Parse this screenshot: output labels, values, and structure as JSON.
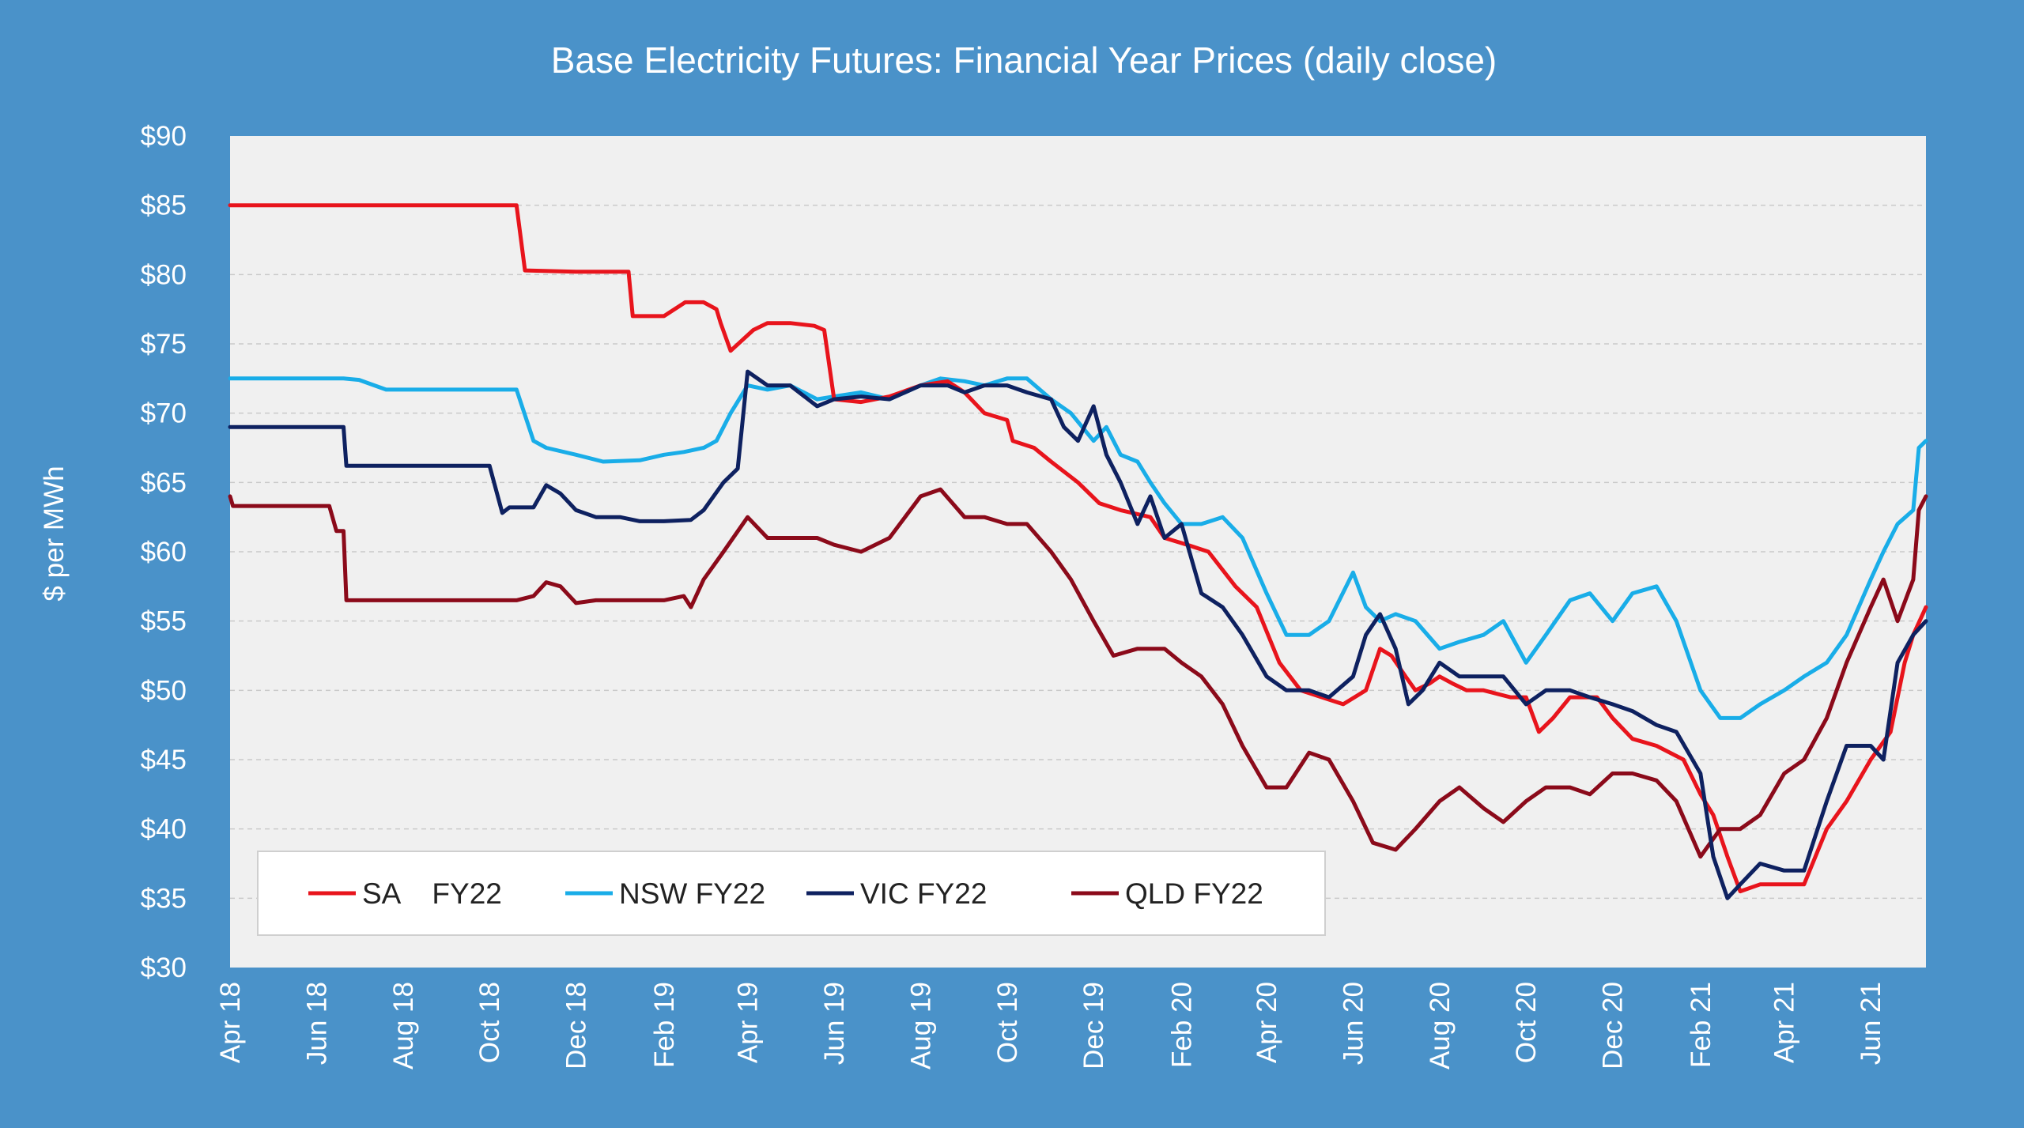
{
  "chart_data": {
    "type": "line",
    "title": "Base Electricity Futures: Financial Year Prices (daily close)",
    "ylabel": "$ per MWh",
    "xlabel": "",
    "ylim": [
      30,
      90
    ],
    "xlim": [
      "2018-04-01",
      "2021-07-10"
    ],
    "y_ticks": [
      "$30",
      "$35",
      "$40",
      "$45",
      "$50",
      "$55",
      "$60",
      "$65",
      "$70",
      "$75",
      "$80",
      "$85",
      "$90"
    ],
    "x_ticks": [
      "Apr 18",
      "Jun 18",
      "Aug 18",
      "Oct 18",
      "Dec 18",
      "Feb 19",
      "Apr 19",
      "Jun 19",
      "Aug 19",
      "Oct 19",
      "Dec 19",
      "Feb 20",
      "Apr 20",
      "Jun 20",
      "Aug 20",
      "Oct 20",
      "Dec 20",
      "Feb 21",
      "Apr 21",
      "Jun 21"
    ],
    "grid": "horizontal dashed",
    "legend_position": "bottom-left",
    "series": [
      {
        "name": "SA    FY22",
        "color": "#e8141c",
        "x": [
          "2018-04-01",
          "2018-10-20",
          "2018-10-26",
          "2018-12-01",
          "2019-01-07",
          "2019-01-10",
          "2019-02-01",
          "2019-02-16",
          "2019-03-01",
          "2019-03-10",
          "2019-03-13",
          "2019-03-20",
          "2019-04-05",
          "2019-04-15",
          "2019-05-01",
          "2019-05-18",
          "2019-05-25",
          "2019-06-01",
          "2019-06-20",
          "2019-07-10",
          "2019-08-01",
          "2019-08-20",
          "2019-09-01",
          "2019-09-15",
          "2019-10-01",
          "2019-10-05",
          "2019-10-20",
          "2019-11-01",
          "2019-11-20",
          "2019-12-05",
          "2019-12-20",
          "2020-01-10",
          "2020-01-20",
          "2020-02-05",
          "2020-02-20",
          "2020-03-10",
          "2020-03-25",
          "2020-04-10",
          "2020-04-25",
          "2020-05-10",
          "2020-05-25",
          "2020-06-10",
          "2020-06-20",
          "2020-06-28",
          "2020-07-08",
          "2020-07-15",
          "2020-07-25",
          "2020-08-01",
          "2020-08-10",
          "2020-08-20",
          "2020-09-01",
          "2020-09-20",
          "2020-10-01",
          "2020-10-10",
          "2020-10-20",
          "2020-11-01",
          "2020-11-20",
          "2020-12-01",
          "2020-12-15",
          "2021-01-01",
          "2021-01-20",
          "2021-02-01",
          "2021-02-10",
          "2021-02-20",
          "2021-03-01",
          "2021-03-15",
          "2021-04-01",
          "2021-04-15",
          "2021-05-01",
          "2021-05-15",
          "2021-06-01",
          "2021-06-15",
          "2021-06-25",
          "2021-07-01",
          "2021-07-10"
        ],
        "y": [
          85,
          85,
          80.3,
          80.2,
          80.2,
          77,
          77,
          78,
          78,
          77.5,
          76.5,
          74.5,
          76,
          76.5,
          76.5,
          76.3,
          76,
          71,
          70.8,
          71.2,
          72,
          72.3,
          71.5,
          70,
          69.5,
          68,
          67.5,
          66.5,
          65,
          63.5,
          63,
          62.5,
          61,
          60.5,
          60,
          57.5,
          56,
          52,
          50,
          49.5,
          49,
          50,
          53,
          52.5,
          51,
          50,
          50.5,
          51,
          50.5,
          50,
          50,
          49.5,
          49.5,
          47,
          48,
          49.5,
          49.5,
          48,
          46.5,
          46,
          45,
          42.5,
          41,
          38,
          35.5,
          36,
          36,
          36,
          40,
          42,
          45,
          47,
          52,
          54,
          56
        ]
      },
      {
        "name": "NSW FY22",
        "color": "#19ade8",
        "x": [
          "2018-04-01",
          "2018-06-20",
          "2018-07-01",
          "2018-07-20",
          "2018-10-20",
          "2018-11-01",
          "2018-11-10",
          "2018-12-01",
          "2018-12-20",
          "2019-01-15",
          "2019-02-01",
          "2019-02-15",
          "2019-03-01",
          "2019-03-10",
          "2019-03-20",
          "2019-04-01",
          "2019-04-15",
          "2019-05-01",
          "2019-05-20",
          "2019-06-01",
          "2019-06-20",
          "2019-07-10",
          "2019-08-01",
          "2019-08-15",
          "2019-09-01",
          "2019-09-15",
          "2019-10-01",
          "2019-10-15",
          "2019-11-01",
          "2019-11-15",
          "2019-12-01",
          "2019-12-10",
          "2019-12-20",
          "2020-01-01",
          "2020-01-10",
          "2020-01-20",
          "2020-02-01",
          "2020-02-15",
          "2020-03-01",
          "2020-03-15",
          "2020-04-01",
          "2020-04-15",
          "2020-05-01",
          "2020-05-15",
          "2020-06-01",
          "2020-06-10",
          "2020-06-20",
          "2020-07-01",
          "2020-07-15",
          "2020-08-01",
          "2020-08-15",
          "2020-09-01",
          "2020-09-15",
          "2020-10-01",
          "2020-10-15",
          "2020-11-01",
          "2020-11-15",
          "2020-12-01",
          "2020-12-15",
          "2021-01-01",
          "2021-01-15",
          "2021-02-01",
          "2021-02-15",
          "2021-03-01",
          "2021-03-15",
          "2021-04-01",
          "2021-04-15",
          "2021-05-01",
          "2021-05-15",
          "2021-06-01",
          "2021-06-10",
          "2021-06-20",
          "2021-07-01",
          "2021-07-05",
          "2021-07-10"
        ],
        "y": [
          72.5,
          72.5,
          72.4,
          71.7,
          71.7,
          68,
          67.5,
          67,
          66.5,
          66.6,
          67,
          67.2,
          67.5,
          68,
          70,
          72,
          71.7,
          72,
          71,
          71.2,
          71.5,
          71,
          72,
          72.5,
          72.3,
          72,
          72.5,
          72.5,
          71,
          70,
          68,
          69,
          67,
          66.5,
          65,
          63.5,
          62,
          62,
          62.5,
          61,
          57,
          54,
          54,
          55,
          58.5,
          56,
          55,
          55.5,
          55,
          53,
          53.5,
          54,
          55,
          52,
          54,
          56.5,
          57,
          55,
          57,
          57.5,
          55,
          50,
          48,
          48,
          49,
          50,
          51,
          52,
          54,
          58,
          60,
          62,
          63,
          67.5,
          68
        ]
      },
      {
        "name": "VIC FY22",
        "color": "#0e2160",
        "x": [
          "2018-04-01",
          "2018-06-20",
          "2018-06-22",
          "2018-10-01",
          "2018-10-10",
          "2018-10-15",
          "2018-11-01",
          "2018-11-10",
          "2018-11-20",
          "2018-12-01",
          "2018-12-15",
          "2019-01-01",
          "2019-01-15",
          "2019-02-01",
          "2019-02-20",
          "2019-03-01",
          "2019-03-15",
          "2019-03-25",
          "2019-04-01",
          "2019-04-15",
          "2019-05-01",
          "2019-05-20",
          "2019-06-01",
          "2019-06-20",
          "2019-07-10",
          "2019-08-01",
          "2019-08-20",
          "2019-09-01",
          "2019-09-15",
          "2019-10-01",
          "2019-10-15",
          "2019-11-01",
          "2019-11-10",
          "2019-11-20",
          "2019-12-01",
          "2019-12-10",
          "2019-12-20",
          "2020-01-01",
          "2020-01-10",
          "2020-01-20",
          "2020-02-01",
          "2020-02-15",
          "2020-03-01",
          "2020-03-15",
          "2020-04-01",
          "2020-04-15",
          "2020-05-01",
          "2020-05-15",
          "2020-06-01",
          "2020-06-10",
          "2020-06-20",
          "2020-07-01",
          "2020-07-10",
          "2020-07-20",
          "2020-08-01",
          "2020-08-15",
          "2020-09-01",
          "2020-09-15",
          "2020-10-01",
          "2020-10-15",
          "2020-11-01",
          "2020-11-15",
          "2020-12-01",
          "2020-12-15",
          "2021-01-01",
          "2021-01-15",
          "2021-02-01",
          "2021-02-10",
          "2021-02-20",
          "2021-03-01",
          "2021-03-15",
          "2021-04-01",
          "2021-04-15",
          "2021-05-01",
          "2021-05-15",
          "2021-06-01",
          "2021-06-10",
          "2021-06-20",
          "2021-07-01",
          "2021-07-10"
        ],
        "y": [
          69,
          69,
          66.2,
          66.2,
          62.8,
          63.2,
          63.2,
          64.8,
          64.2,
          63,
          62.5,
          62.5,
          62.2,
          62.2,
          62.3,
          63,
          65,
          66,
          73,
          72,
          72,
          70.5,
          71,
          71.2,
          71,
          72,
          72,
          71.5,
          72,
          72,
          71.5,
          71,
          69,
          68,
          70.5,
          67,
          65,
          62,
          64,
          61,
          62,
          57,
          56,
          54,
          51,
          50,
          50,
          49.5,
          51,
          54,
          55.5,
          53,
          49,
          50,
          52,
          51,
          51,
          51,
          49,
          50,
          50,
          49.5,
          49,
          48.5,
          47.5,
          47,
          44,
          38,
          35,
          36,
          37.5,
          37,
          37,
          42,
          46,
          46,
          45,
          52,
          54,
          55
        ]
      },
      {
        "name": "QLD FY22",
        "color": "#8b0a1a",
        "x": [
          "2018-04-01",
          "2018-04-03",
          "2018-06-10",
          "2018-06-15",
          "2018-06-20",
          "2018-06-22",
          "2018-10-20",
          "2018-11-01",
          "2018-11-10",
          "2018-11-20",
          "2018-12-01",
          "2018-12-15",
          "2019-01-01",
          "2019-02-01",
          "2019-02-15",
          "2019-02-20",
          "2019-03-01",
          "2019-03-15",
          "2019-04-01",
          "2019-04-15",
          "2019-05-01",
          "2019-05-20",
          "2019-06-01",
          "2019-06-20",
          "2019-07-10",
          "2019-08-01",
          "2019-08-15",
          "2019-09-01",
          "2019-09-15",
          "2019-10-01",
          "2019-10-15",
          "2019-11-01",
          "2019-11-15",
          "2019-12-01",
          "2019-12-15",
          "2020-01-01",
          "2020-01-10",
          "2020-01-20",
          "2020-02-01",
          "2020-02-15",
          "2020-03-01",
          "2020-03-15",
          "2020-04-01",
          "2020-04-15",
          "2020-05-01",
          "2020-05-15",
          "2020-06-01",
          "2020-06-15",
          "2020-07-01",
          "2020-07-15",
          "2020-08-01",
          "2020-08-15",
          "2020-09-01",
          "2020-09-15",
          "2020-10-01",
          "2020-10-15",
          "2020-11-01",
          "2020-11-15",
          "2020-12-01",
          "2020-12-15",
          "2021-01-01",
          "2021-01-15",
          "2021-02-01",
          "2021-02-15",
          "2021-03-01",
          "2021-03-15",
          "2021-04-01",
          "2021-04-15",
          "2021-05-01",
          "2021-05-15",
          "2021-06-01",
          "2021-06-10",
          "2021-06-20",
          "2021-07-01",
          "2021-07-05",
          "2021-07-10"
        ],
        "y": [
          64,
          63.3,
          63.3,
          61.5,
          61.5,
          56.5,
          56.5,
          56.8,
          57.8,
          57.5,
          56.3,
          56.5,
          56.5,
          56.5,
          56.8,
          56,
          58,
          60,
          62.5,
          61,
          61,
          61,
          60.5,
          60,
          61,
          64,
          64.5,
          62.5,
          62.5,
          62,
          62,
          60,
          58,
          55,
          52.5,
          53,
          53,
          53,
          52,
          51,
          49,
          46,
          43,
          43,
          45.5,
          45,
          42,
          39,
          38.5,
          40,
          42,
          43,
          41.5,
          40.5,
          42,
          43,
          43,
          42.5,
          44,
          44,
          43.5,
          42,
          38,
          40,
          40,
          41,
          44,
          45,
          48,
          52,
          56,
          58,
          55,
          58,
          63,
          64
        ]
      }
    ]
  }
}
